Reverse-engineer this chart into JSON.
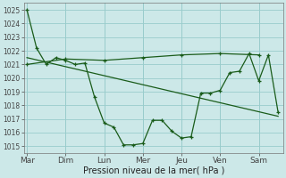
{
  "xlabel": "Pression niveau de la mer( hPa )",
  "background_color": "#cce8e8",
  "grid_color": "#99cccc",
  "line_color": "#1a5c1a",
  "ylim": [
    1014.5,
    1025.5
  ],
  "xlim": [
    -0.3,
    26.5
  ],
  "day_labels": [
    "Mar",
    "Dim",
    "Lun",
    "Mer",
    "Jeu",
    "Ven",
    "Sam"
  ],
  "day_positions": [
    0,
    4,
    8,
    12,
    16,
    20,
    24
  ],
  "series1_x": [
    0,
    1,
    2,
    3,
    4,
    5,
    6,
    7,
    8,
    9,
    10,
    11,
    12,
    13,
    14,
    15,
    16,
    17,
    18,
    19,
    20,
    21,
    22,
    23,
    24,
    25,
    26
  ],
  "series1_y": [
    1025.0,
    1022.2,
    1021.0,
    1021.5,
    1021.3,
    1021.0,
    1021.1,
    1018.6,
    1016.7,
    1016.4,
    1015.1,
    1015.1,
    1015.2,
    1016.9,
    1016.9,
    1016.1,
    1015.6,
    1015.7,
    1018.9,
    1018.9,
    1019.1,
    1020.4,
    1020.5,
    1021.8,
    1019.8,
    1021.7,
    1017.5
  ],
  "series2_x": [
    0,
    4,
    8,
    12,
    16,
    20,
    24
  ],
  "series2_y": [
    1021.0,
    1021.4,
    1021.3,
    1021.5,
    1021.7,
    1021.8,
    1021.7
  ],
  "series3_x": [
    0,
    26
  ],
  "series3_y": [
    1021.5,
    1017.2
  ],
  "yticks": [
    1015,
    1016,
    1017,
    1018,
    1019,
    1020,
    1021,
    1022,
    1023,
    1024,
    1025
  ],
  "ylabel_fontsize": 5.5,
  "xlabel_fontsize": 7.0,
  "xtick_fontsize": 6.5,
  "line_width": 0.9,
  "marker_size": 3
}
